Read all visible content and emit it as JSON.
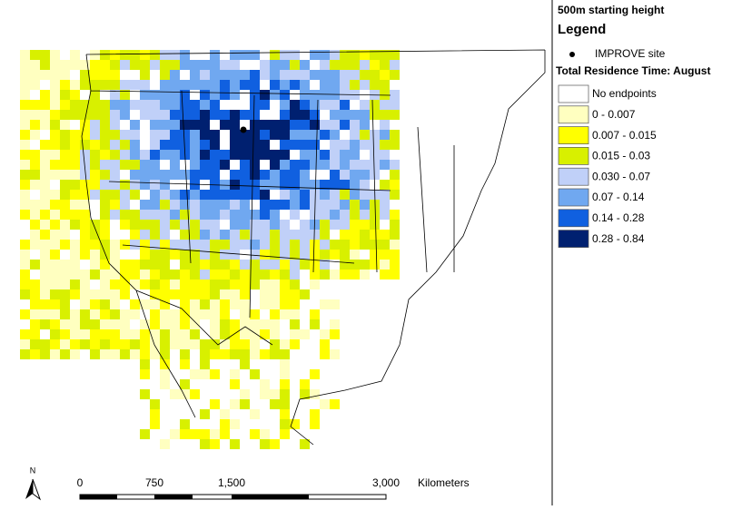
{
  "header": {
    "title": "500m starting height"
  },
  "legend": {
    "title": "Legend",
    "site": "IMPROVE site",
    "subtitle": "Total Residence Time: August",
    "items": [
      {
        "label": "No endpoints",
        "color": "#ffffff"
      },
      {
        "label": "0 - 0.007",
        "color": "#ffffc0"
      },
      {
        "label": "0.007 - 0.015",
        "color": "#ffff00"
      },
      {
        "label": "0.015 - 0.03",
        "color": "#d8f000"
      },
      {
        "label": "0.030 - 0.07",
        "color": "#c0d0f8"
      },
      {
        "label": "0.07 - 0.14",
        "color": "#70a8f0"
      },
      {
        "label": "0.14 - 0.28",
        "color": "#1060e0"
      },
      {
        "label": "0.28 - 0.84",
        "color": "#002070"
      }
    ]
  },
  "scale": {
    "labels": [
      "0",
      "750",
      "1,500",
      "3,000"
    ],
    "unit": "Kilometers"
  },
  "north": "N"
}
